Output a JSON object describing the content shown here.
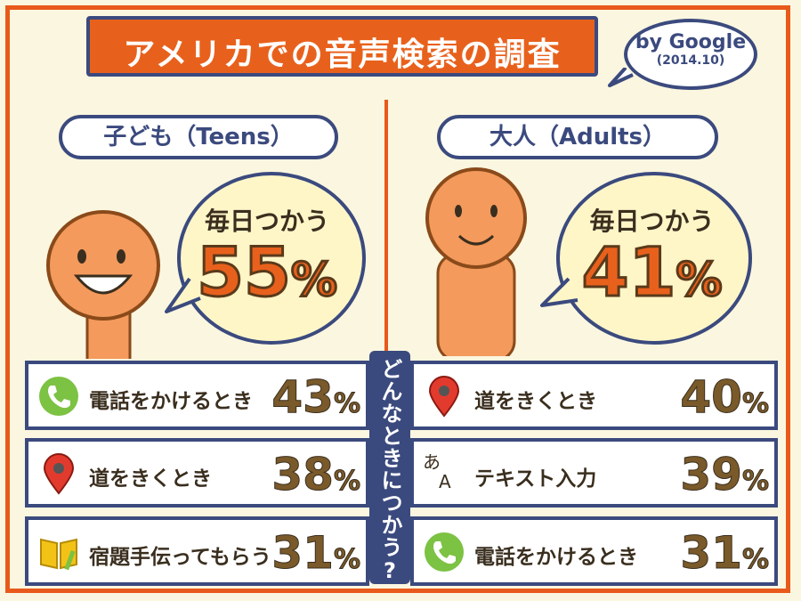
{
  "title": "アメリカでの音声検索の調査",
  "source": {
    "line1": "by Google",
    "line2": "(2014.10)"
  },
  "teens": {
    "label": "子ども（Teens）",
    "speech_top": "毎日つかう",
    "daily_value": "55",
    "daily_unit": "%",
    "rows": [
      {
        "icon": "phone-icon",
        "label": "電話をかけるとき",
        "value": "43",
        "unit": "%"
      },
      {
        "icon": "map-pin-icon",
        "label": "道をきくとき",
        "value": "38",
        "unit": "%"
      },
      {
        "icon": "book-pencil-icon",
        "label": "宿題手伝ってもらう",
        "value": "31",
        "unit": "%"
      }
    ]
  },
  "adults": {
    "label": "大人（Adults）",
    "speech_top": "毎日つかう",
    "daily_value": "41",
    "daily_unit": "%",
    "rows": [
      {
        "icon": "map-pin-icon",
        "label": "道をきくとき",
        "value": "40",
        "unit": "%"
      },
      {
        "icon": "text-input-icon",
        "label": "テキスト入力",
        "value": "39",
        "unit": "%"
      },
      {
        "icon": "phone-icon",
        "label": "電話をかけるとき",
        "value": "31",
        "unit": "%"
      }
    ]
  },
  "question": "どんなときにつかう?",
  "icon_text": {
    "line1": "あ",
    "line2": "A"
  },
  "colors": {
    "orange": "#e8611c",
    "navy": "#3b4a7e",
    "green": "#7cc243",
    "red": "#e23b2e",
    "yellow": "#f2c316",
    "skin": "#f39a5c"
  }
}
